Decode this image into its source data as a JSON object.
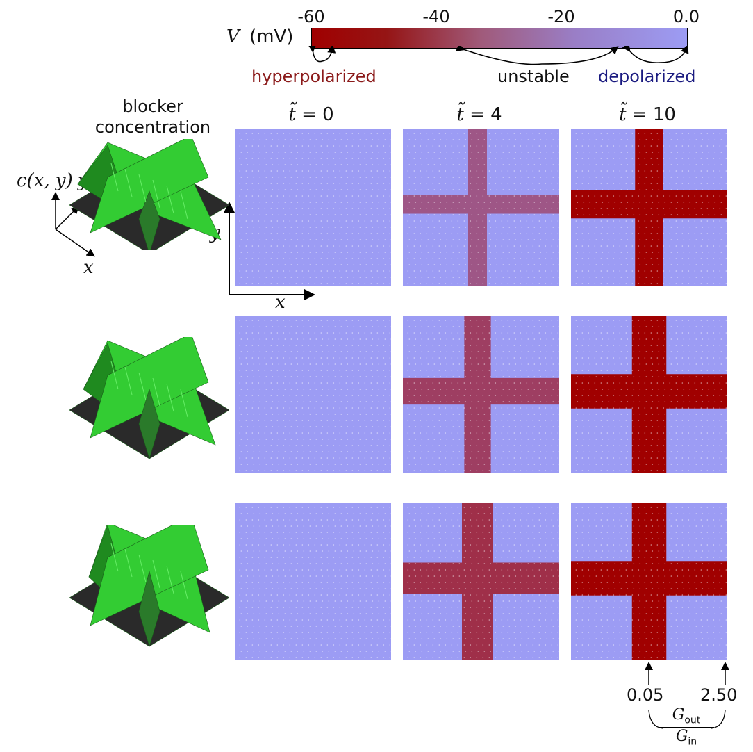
{
  "colorbar": {
    "label_symbol": "V",
    "label_unit": "(mV)",
    "ticks": [
      "-60",
      "-40",
      "-20",
      "0.0"
    ],
    "range": [
      -60,
      0
    ],
    "color_low": "#a00000",
    "color_high": "#9c9cf4"
  },
  "states": {
    "hyperpolarized": "hyperpolarized",
    "unstable": "unstable",
    "depolarized": "depolarized",
    "hyper_color": "#8b1a1a",
    "unstable_color": "#111111",
    "depol_color": "#1a1a80"
  },
  "left_header": {
    "line1": "blocker",
    "line2": "concentration"
  },
  "axes": {
    "surface_z": "c(x, y)",
    "surface_y": "y",
    "surface_x": "x",
    "panel_y": "y",
    "panel_x": "x"
  },
  "columns": [
    {
      "label_lhs": "t̃",
      "label_eq": "= 0",
      "time": 0
    },
    {
      "label_lhs": "t̃",
      "label_eq": "= 4",
      "time": 4
    },
    {
      "label_lhs": "t̃",
      "label_eq": "= 10",
      "time": 10
    }
  ],
  "rows": [
    {
      "ridge": "smooth",
      "cross_intensity": [
        0,
        0.45,
        1.0
      ],
      "cross_width": [
        0,
        0.12,
        0.18
      ]
    },
    {
      "ridge": "medium",
      "cross_intensity": [
        0,
        0.6,
        1.0
      ],
      "cross_width": [
        0,
        0.17,
        0.22
      ]
    },
    {
      "ridge": "sharp",
      "cross_intensity": [
        0,
        0.7,
        1.0
      ],
      "cross_width": [
        0,
        0.2,
        0.22
      ]
    }
  ],
  "conductance": {
    "low": "0.05",
    "high": "2.50",
    "ratio_num": "G",
    "ratio_num_sub": "out",
    "ratio_den": "G",
    "ratio_den_sub": "in"
  },
  "colors": {
    "depolarized_fill": "#9c9cf4",
    "hyper_fill": "#a00000",
    "surface_green": "#33cc33",
    "surface_dark": "#2a2a2a"
  }
}
